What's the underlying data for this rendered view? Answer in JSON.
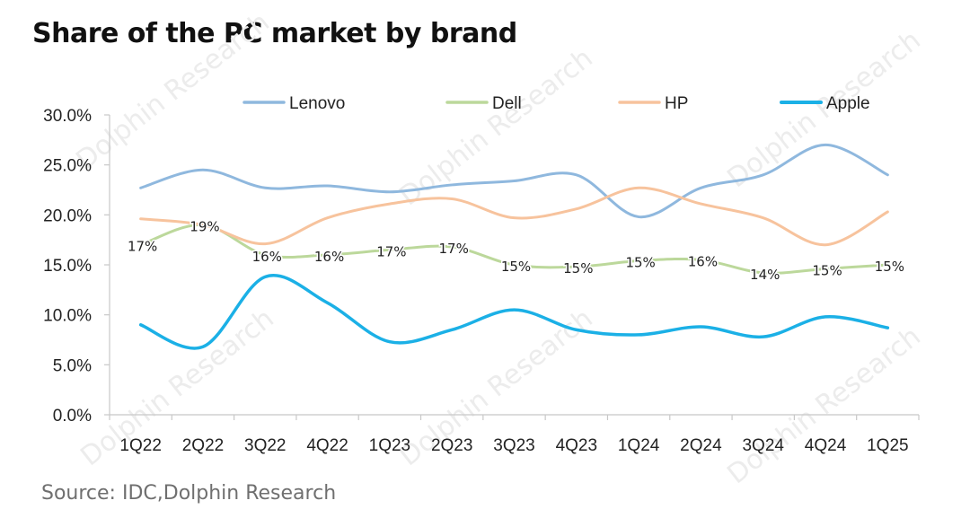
{
  "chart_data": {
    "type": "line",
    "title": "Share of the PC market by brand",
    "source": "Source: IDC,Dolphin Research",
    "xlabel": "",
    "ylabel": "",
    "categories": [
      "1Q22",
      "2Q22",
      "3Q22",
      "4Q22",
      "1Q23",
      "2Q23",
      "3Q23",
      "4Q23",
      "1Q24",
      "2Q24",
      "3Q24",
      "4Q24",
      "1Q25"
    ],
    "ylim": [
      0,
      30
    ],
    "y_ticks": [
      "0.0%",
      "5.0%",
      "10.0%",
      "15.0%",
      "20.0%",
      "25.0%",
      "30.0%"
    ],
    "legend_position": "top",
    "grid": false,
    "series": [
      {
        "name": "Lenovo",
        "color": "#8fb8de",
        "values": [
          22.7,
          24.5,
          22.7,
          22.9,
          22.3,
          23.0,
          23.4,
          24.0,
          19.8,
          22.7,
          24.0,
          27.0,
          24.0
        ]
      },
      {
        "name": "Dell",
        "color": "#bcd89b",
        "values": [
          17.0,
          19.0,
          16.0,
          16.0,
          16.5,
          16.8,
          15.0,
          14.8,
          15.4,
          15.5,
          14.2,
          14.6,
          15.0
        ],
        "data_labels": [
          "17%",
          "19%",
          "16%",
          "16%",
          "17%",
          "17%",
          "15%",
          "15%",
          "15%",
          "16%",
          "14%",
          "15%",
          "15%"
        ]
      },
      {
        "name": "HP",
        "color": "#f7c39d",
        "values": [
          19.6,
          19.0,
          17.1,
          19.7,
          21.1,
          21.6,
          19.7,
          20.6,
          22.7,
          21.1,
          19.7,
          17.0,
          20.3
        ]
      },
      {
        "name": "Apple",
        "color": "#1bb0e6",
        "values": [
          9.0,
          6.8,
          13.8,
          11.2,
          7.3,
          8.5,
          10.5,
          8.5,
          8.0,
          8.8,
          7.8,
          9.8,
          8.7
        ]
      }
    ]
  },
  "watermark_text": "Dolphin Research"
}
